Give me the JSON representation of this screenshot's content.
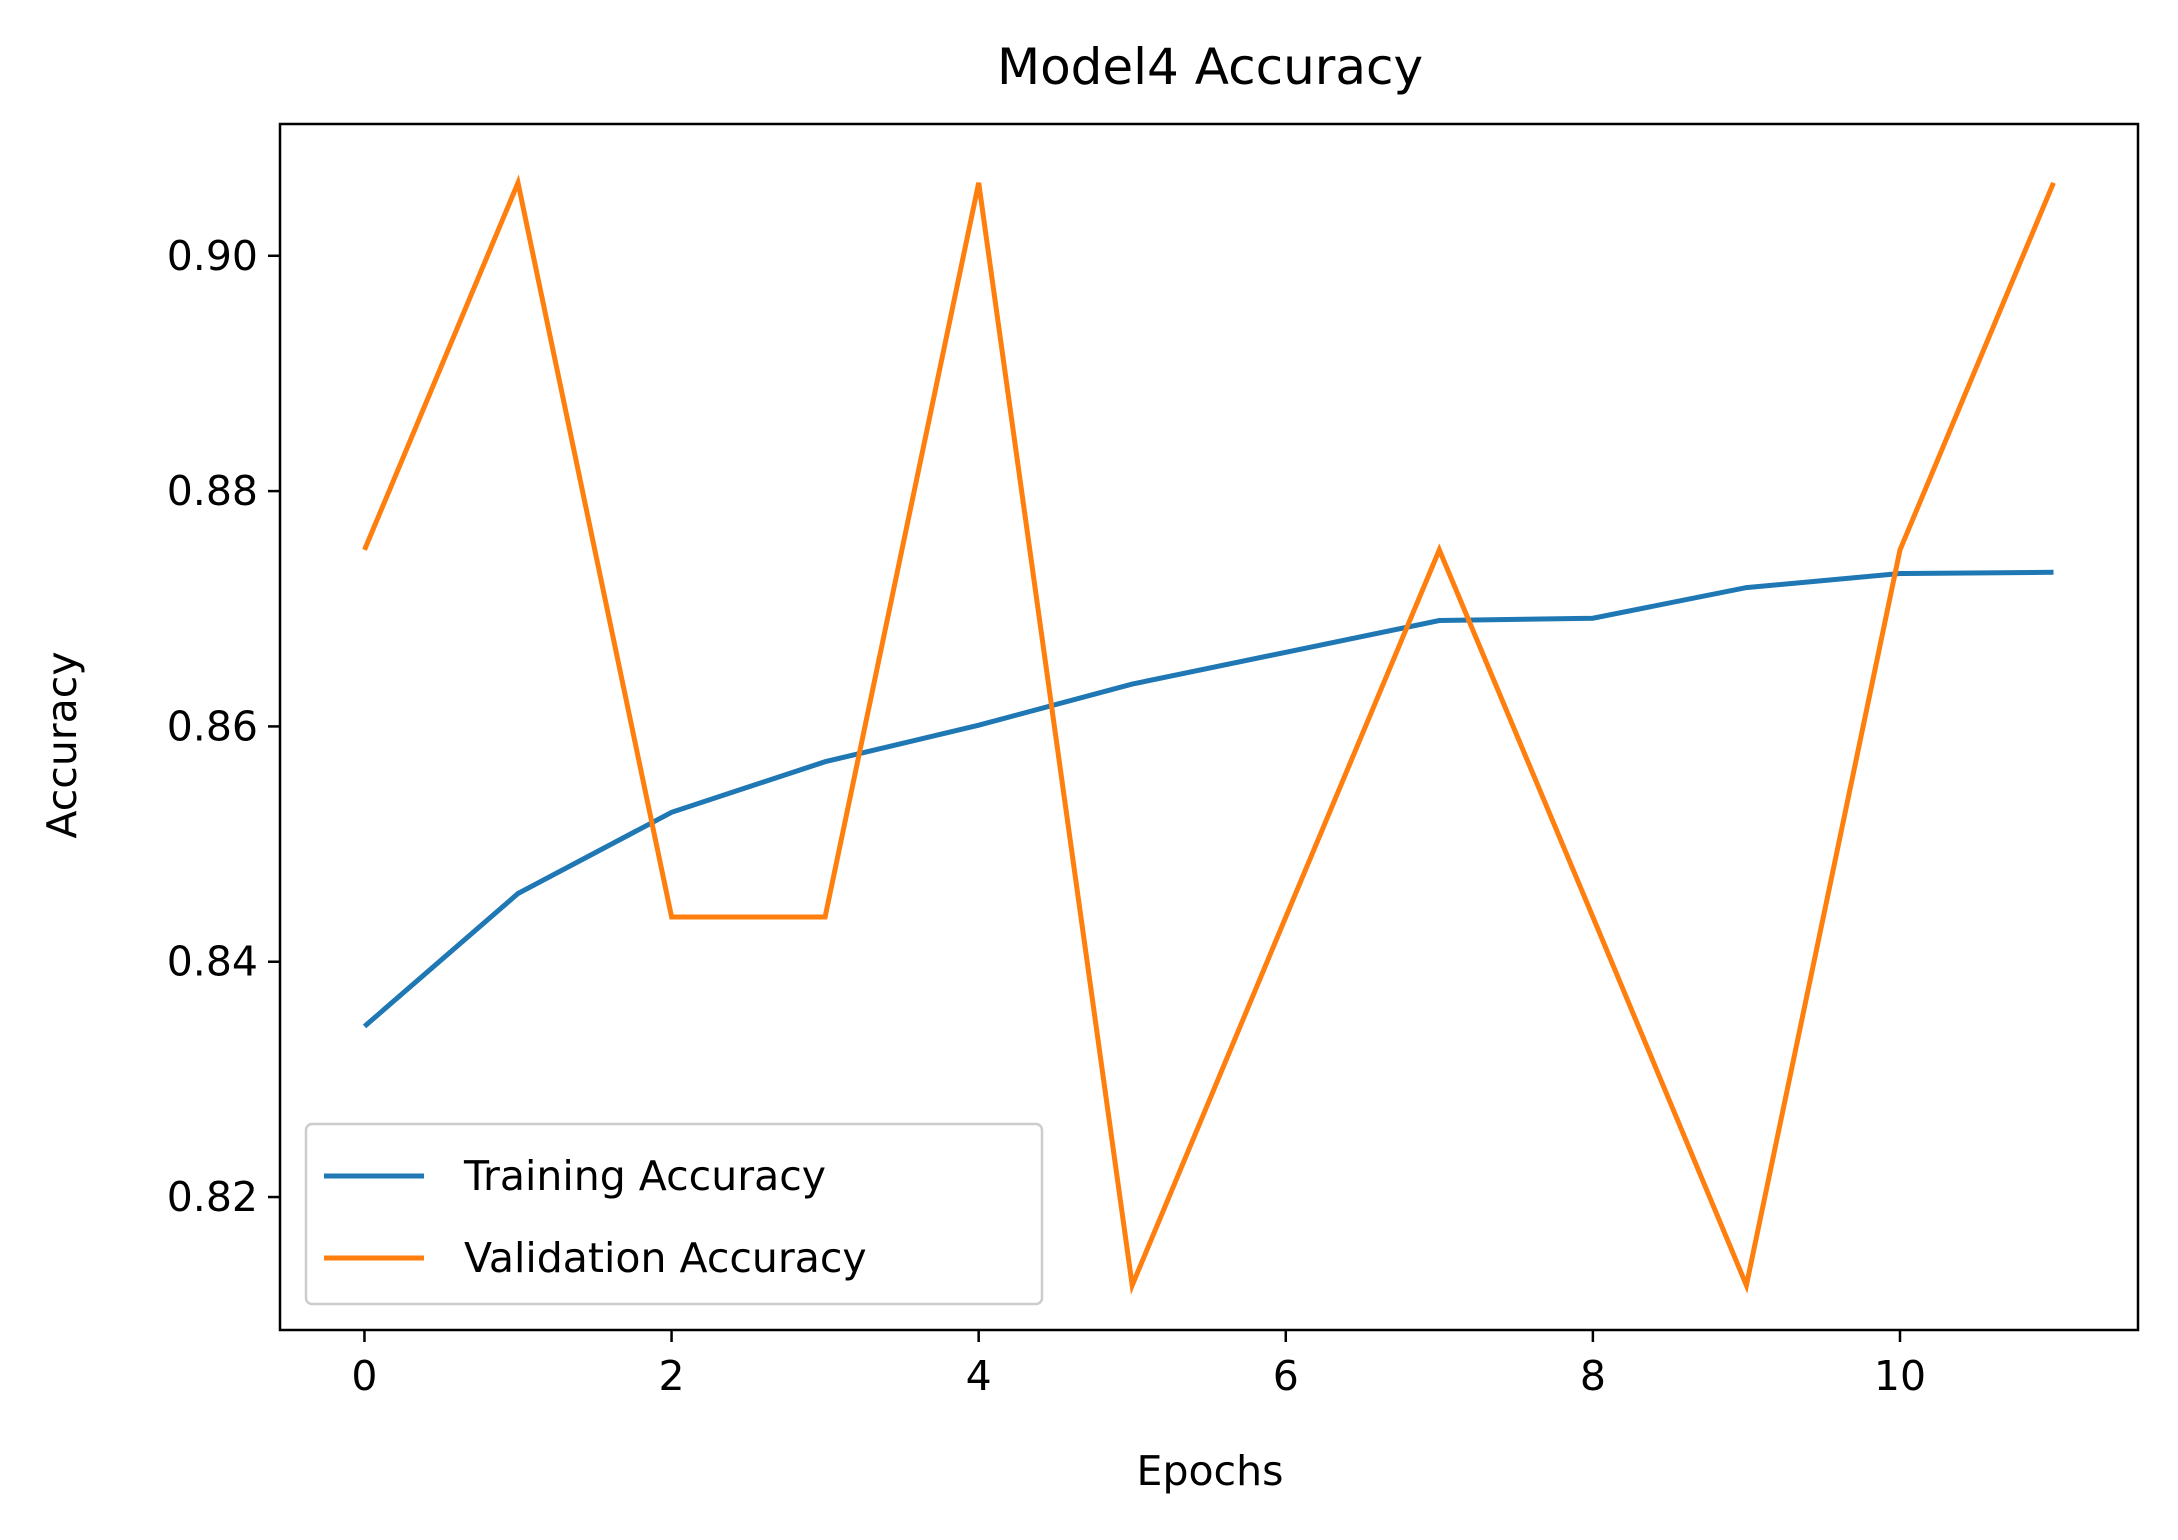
{
  "chart_data": {
    "type": "line",
    "title": "Model4 Accuracy",
    "xlabel": "Epochs",
    "ylabel": "Accuracy",
    "x": [
      0,
      1,
      2,
      3,
      4,
      5,
      6,
      7,
      8,
      9,
      10,
      11
    ],
    "xlim": [
      -0.55,
      11.55
    ],
    "ylim": [
      0.8087,
      0.9112
    ],
    "xticks": [
      0,
      2,
      4,
      6,
      8,
      10
    ],
    "xtick_labels": [
      "0",
      "2",
      "4",
      "6",
      "8",
      "10"
    ],
    "yticks": [
      0.82,
      0.84,
      0.86,
      0.88,
      0.9
    ],
    "ytick_labels": [
      "0.82",
      "0.84",
      "0.86",
      "0.88",
      "0.90"
    ],
    "grid": false,
    "legend_position": "lower-left",
    "series": [
      {
        "name": "Training Accuracy",
        "color": "#1f77b4",
        "values": [
          0.8345,
          0.8458,
          0.8527,
          0.857,
          0.8601,
          0.8636,
          0.8663,
          0.869,
          0.8692,
          0.8718,
          0.873,
          0.8731
        ]
      },
      {
        "name": "Validation Accuracy",
        "color": "#ff7f0e",
        "values": [
          0.875,
          0.9062,
          0.8438,
          0.8438,
          0.9062,
          0.8125,
          0.8438,
          0.875,
          0.8438,
          0.8125,
          0.875,
          0.9062
        ]
      }
    ]
  }
}
